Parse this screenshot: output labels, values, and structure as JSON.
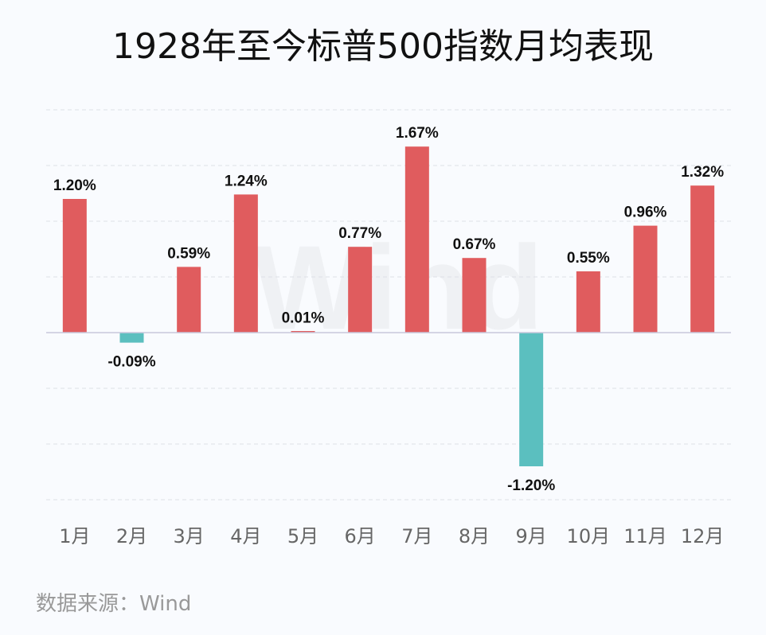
{
  "title": "1928年至今标普500指数月均表现",
  "source": "数据来源：Wind",
  "watermark": "Wind",
  "colors": {
    "positive": "#e05c5e",
    "negative": "#5bbfbf",
    "grid": "#dde0e6",
    "axis": "#c8c8dc"
  },
  "chart_data": {
    "type": "bar",
    "categories": [
      "1月",
      "2月",
      "3月",
      "4月",
      "5月",
      "6月",
      "7月",
      "8月",
      "9月",
      "10月",
      "11月",
      "12月"
    ],
    "values": [
      1.2,
      -0.09,
      0.59,
      1.24,
      0.01,
      0.77,
      1.67,
      0.67,
      -1.2,
      0.55,
      0.96,
      1.32
    ],
    "labels": [
      "1.20%",
      "-0.09%",
      "0.59%",
      "1.24%",
      "0.01%",
      "0.77%",
      "1.67%",
      "0.67%",
      "-1.20%",
      "0.55%",
      "0.96%",
      "1.32%"
    ],
    "unit": "%",
    "ylim": [
      -1.5,
      2.0
    ],
    "grid": true,
    "grid_step": 0.5,
    "yaxis_labels_shown": false
  }
}
